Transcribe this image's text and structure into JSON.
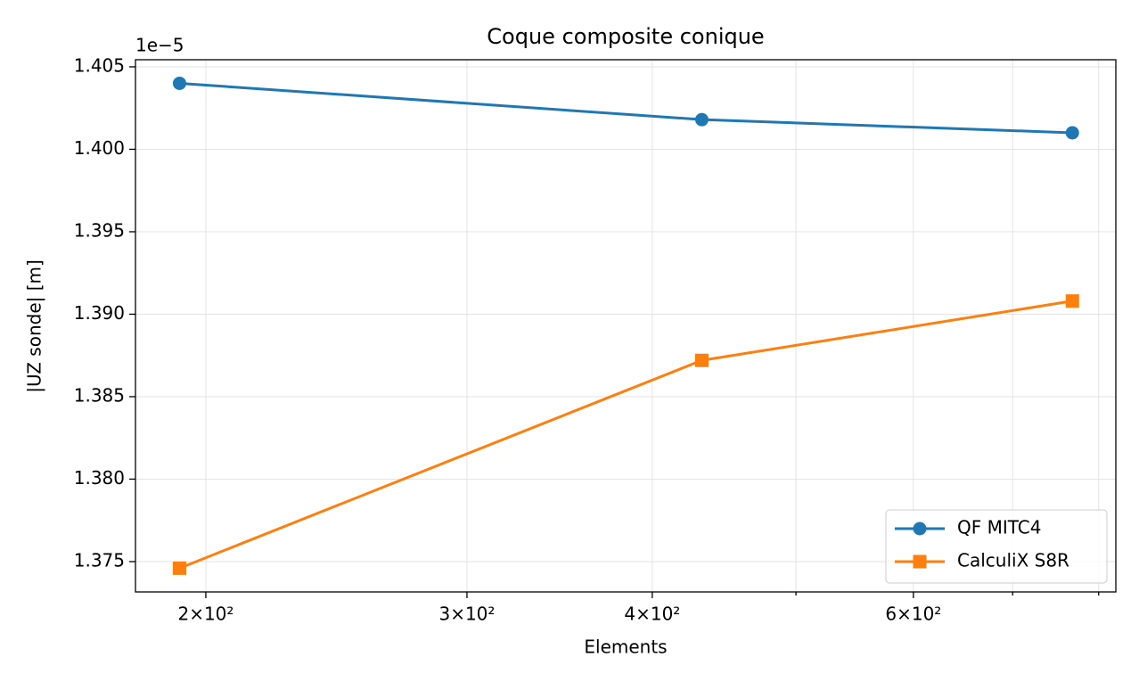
{
  "chart_data": {
    "type": "line",
    "title": "Coque composite conique",
    "x_label": "Elements",
    "y_label": "|UZ sonde| [m]",
    "y_offset_label": "1e−5",
    "x": [
      192,
      432,
      768
    ],
    "series": [
      {
        "name": "QF MITC4",
        "color": "#1f77b4",
        "marker": "circle",
        "values": [
          1.404,
          1.4018,
          1.401
        ]
      },
      {
        "name": "CalculiX S8R",
        "color": "#ff7f0e",
        "marker": "square",
        "values": [
          1.3746,
          1.3872,
          1.3908
        ]
      }
    ],
    "x_scale": "log",
    "xlim": [
      179.3,
      821.6
    ],
    "xticks": [
      {
        "value": 200,
        "label": "2×10²"
      },
      {
        "value": 300,
        "label": "3×10²"
      },
      {
        "value": 400,
        "label": "4×10²"
      },
      {
        "value": 600,
        "label": "6×10²"
      }
    ],
    "xminor_ticks": [
      500,
      700,
      800
    ],
    "ylim": [
      1.37316,
      1.40543
    ],
    "yticks": [
      {
        "value": 1.375,
        "label": "1.375"
      },
      {
        "value": 1.38,
        "label": "1.380"
      },
      {
        "value": 1.385,
        "label": "1.385"
      },
      {
        "value": 1.39,
        "label": "1.390"
      },
      {
        "value": 1.395,
        "label": "1.395"
      },
      {
        "value": 1.4,
        "label": "1.400"
      },
      {
        "value": 1.405,
        "label": "1.405"
      }
    ],
    "grid": true,
    "legend": "lower right"
  }
}
